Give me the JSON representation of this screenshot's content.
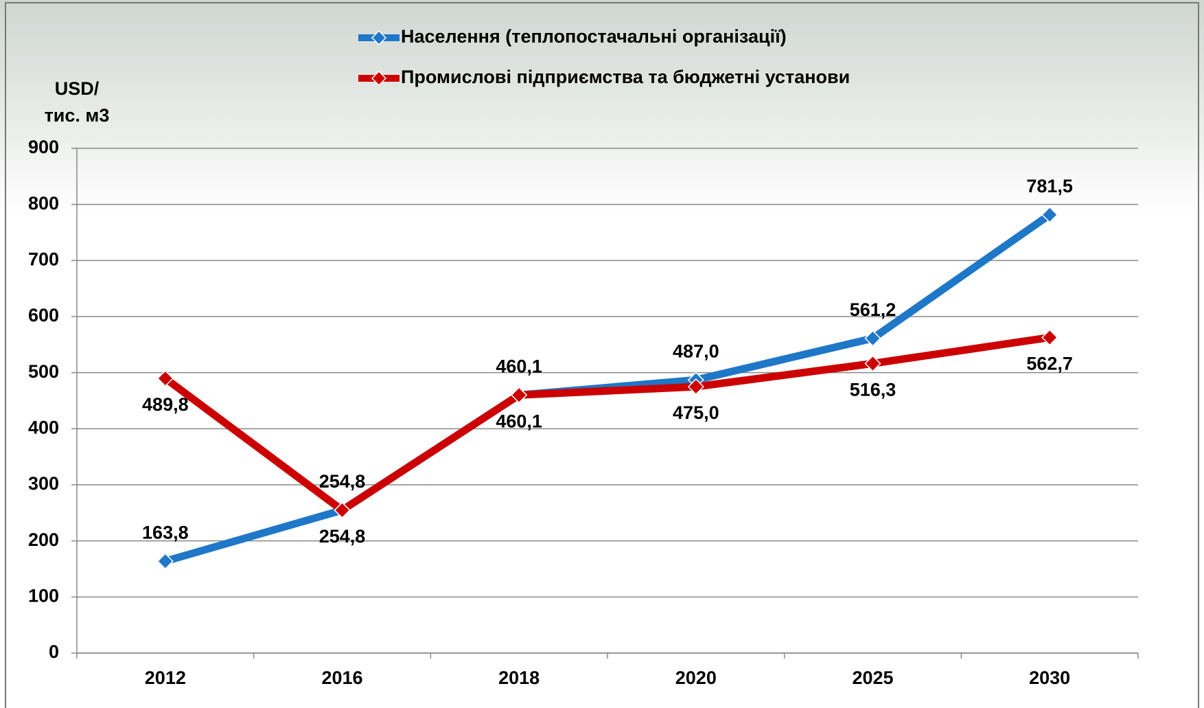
{
  "chart_data": {
    "type": "line",
    "y_label": [
      "USD/",
      "тис. м3"
    ],
    "categories": [
      "2012",
      "2016",
      "2018",
      "2020",
      "2025",
      "2030"
    ],
    "series": [
      {
        "name": "Населення (теплопостачальні організації)",
        "color": "#1f77c8",
        "values": [
          163.8,
          254.8,
          460.1,
          487.0,
          561.2,
          781.5
        ],
        "value_labels": [
          "163,8",
          "254,8",
          "460,1",
          "487,0",
          "561,2",
          "781,5"
        ]
      },
      {
        "name": "Промислові підприємства та бюджетні установи",
        "color": "#cc0000",
        "values": [
          489.8,
          254.8,
          460.1,
          475.0,
          516.3,
          562.7
        ],
        "value_labels": [
          "489,8",
          "254,8",
          "460,1",
          "475,0",
          "516,3",
          "562,7"
        ]
      }
    ],
    "ylim": [
      0,
      900
    ],
    "yticks": [
      0,
      100,
      200,
      300,
      400,
      500,
      600,
      700,
      800,
      900
    ],
    "grid": true
  }
}
